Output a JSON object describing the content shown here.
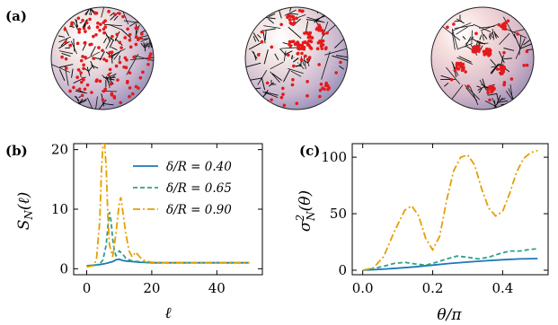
{
  "panels": {
    "a": "(a)",
    "b": "(b)",
    "c": "(c)"
  },
  "spheres": [
    {
      "points": 120,
      "clustering": "uniform"
    },
    {
      "points": 120,
      "clustering": "moderate"
    },
    {
      "points": 120,
      "clustering": "strong"
    }
  ],
  "colors": {
    "s040": "#1f77b4",
    "s065": "#2ca089",
    "s090": "#e69f00",
    "points": "#e31a1c",
    "edges": "#111111"
  },
  "chart_data": [
    {
      "type": "line",
      "panel": "(b)",
      "xlabel": "ℓ",
      "ylabel": "S_N(ℓ)",
      "xlim": [
        -4,
        54
      ],
      "ylim": [
        -1,
        21
      ],
      "xticks": [
        "0",
        "20",
        "40"
      ],
      "yticks": [
        "0",
        "10",
        "20"
      ],
      "legend_position": "top-right",
      "series": [
        {
          "name": "δ/R = 0.40",
          "style": "solid",
          "x": [
            0,
            2,
            4,
            6,
            8,
            9,
            10,
            11,
            12,
            14,
            16,
            18,
            20,
            25,
            30,
            35,
            40,
            45,
            50
          ],
          "y": [
            0.5,
            0.6,
            0.7,
            0.9,
            1.2,
            1.5,
            1.6,
            1.4,
            1.3,
            1.2,
            1.1,
            1.05,
            1.0,
            1.0,
            1.0,
            1.0,
            1.0,
            1.0,
            1.0
          ]
        },
        {
          "name": "δ/R = 0.65",
          "style": "dashed",
          "x": [
            0,
            2,
            4,
            5,
            6,
            6.5,
            7,
            7.5,
            8,
            8.5,
            9,
            10,
            11,
            12,
            13,
            14,
            16,
            18,
            20,
            25,
            30,
            40,
            50
          ],
          "y": [
            0.4,
            0.5,
            0.8,
            1.5,
            4,
            7,
            9.5,
            8,
            5,
            3,
            2.2,
            3,
            2.5,
            1.8,
            1.5,
            1.3,
            1.2,
            1.1,
            1.0,
            1.0,
            1.0,
            1.0,
            1.0
          ]
        },
        {
          "name": "δ/R = 0.90",
          "style": "dashdot",
          "x": [
            0,
            2,
            3,
            4,
            4.5,
            5,
            5.5,
            6,
            6.5,
            7,
            8,
            9,
            10,
            10.5,
            11,
            12,
            13,
            14,
            15,
            16,
            17,
            18,
            20,
            25,
            30,
            40,
            50
          ],
          "y": [
            0.3,
            0.5,
            1.5,
            8,
            16,
            21,
            21,
            17,
            9,
            4,
            2,
            6,
            11,
            12,
            10,
            6,
            3,
            2,
            2.8,
            2.2,
            1.6,
            1.3,
            1.1,
            1.0,
            1.0,
            1.0,
            1.0
          ]
        }
      ]
    },
    {
      "type": "line",
      "panel": "(c)",
      "xlabel": "θ/π",
      "ylabel": "σ²_N(θ)",
      "xlim": [
        -0.03,
        0.53
      ],
      "ylim": [
        -4,
        112
      ],
      "xticks": [
        "0.0",
        "0.2",
        "0.4"
      ],
      "yticks": [
        "0",
        "50",
        "100"
      ],
      "series": [
        {
          "name": "δ/R = 0.40",
          "style": "solid",
          "x": [
            0,
            0.05,
            0.1,
            0.15,
            0.2,
            0.25,
            0.3,
            0.35,
            0.4,
            0.45,
            0.5
          ],
          "y": [
            0,
            0.8,
            1.8,
            3,
            4.5,
            6,
            7.2,
            8.3,
            9.3,
            10.0,
            10.3
          ]
        },
        {
          "name": "δ/R = 0.65",
          "style": "dashed",
          "x": [
            0,
            0.03,
            0.06,
            0.09,
            0.12,
            0.15,
            0.18,
            0.21,
            0.24,
            0.27,
            0.3,
            0.33,
            0.36,
            0.39,
            0.42,
            0.45,
            0.48,
            0.5
          ],
          "y": [
            0,
            1.5,
            3.5,
            6,
            7,
            5.5,
            4.5,
            7,
            10,
            12.5,
            11.5,
            10,
            11.5,
            14.5,
            17,
            17,
            18.5,
            19
          ]
        },
        {
          "name": "δ/R = 0.90",
          "style": "dashdot",
          "x": [
            0,
            0.03,
            0.06,
            0.09,
            0.12,
            0.14,
            0.16,
            0.18,
            0.2,
            0.22,
            0.24,
            0.26,
            0.28,
            0.3,
            0.32,
            0.34,
            0.36,
            0.38,
            0.4,
            0.42,
            0.44,
            0.46,
            0.48,
            0.5
          ],
          "y": [
            0,
            2,
            12,
            34,
            53,
            57,
            48,
            28,
            18,
            30,
            62,
            88,
            100,
            102,
            93,
            72,
            55,
            48,
            52,
            68,
            87,
            99,
            104,
            106
          ]
        }
      ]
    }
  ]
}
